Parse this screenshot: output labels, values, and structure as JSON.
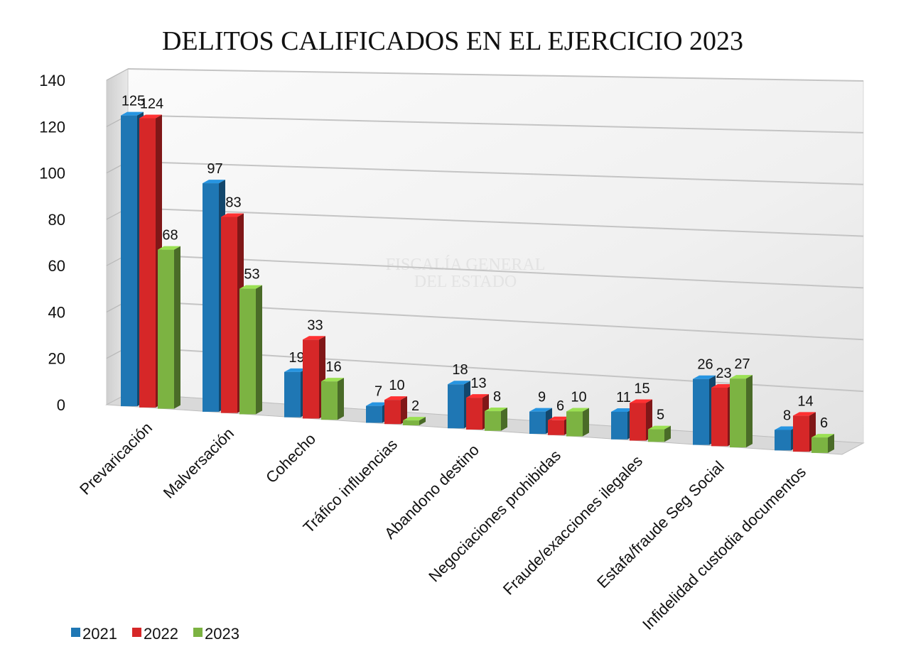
{
  "chart_data": {
    "type": "bar",
    "title": "DELITOS CALIFICADOS EN EL EJERCICIO 2023",
    "xlabel": "",
    "ylabel": "",
    "ylim": [
      0,
      140
    ],
    "yticks": [
      0,
      20,
      40,
      60,
      80,
      100,
      120,
      140
    ],
    "categories": [
      "Prevaricación",
      "Malversación",
      "Cohecho",
      "Tráfico influencias",
      "Abandono destino",
      "Negociaciones prohibidas",
      "Fraude/exacciones ilegales",
      "Estafa/fraude Seg Social",
      "Infidelidad custodia documentos"
    ],
    "series": [
      {
        "name": "2021",
        "color": "#1f77b4",
        "values": [
          125,
          97,
          19,
          7,
          18,
          9,
          11,
          26,
          8
        ]
      },
      {
        "name": "2022",
        "color": "#d62728",
        "values": [
          124,
          83,
          33,
          10,
          13,
          6,
          15,
          23,
          14
        ]
      },
      {
        "name": "2023",
        "color": "#7cb342",
        "values": [
          68,
          53,
          16,
          2,
          8,
          10,
          5,
          27,
          6
        ]
      }
    ],
    "grid": true,
    "legend": "bottom-left",
    "data_labels": true,
    "watermark_text": [
      "FISCALÍA GENERAL",
      "DEL ESTADO"
    ]
  }
}
